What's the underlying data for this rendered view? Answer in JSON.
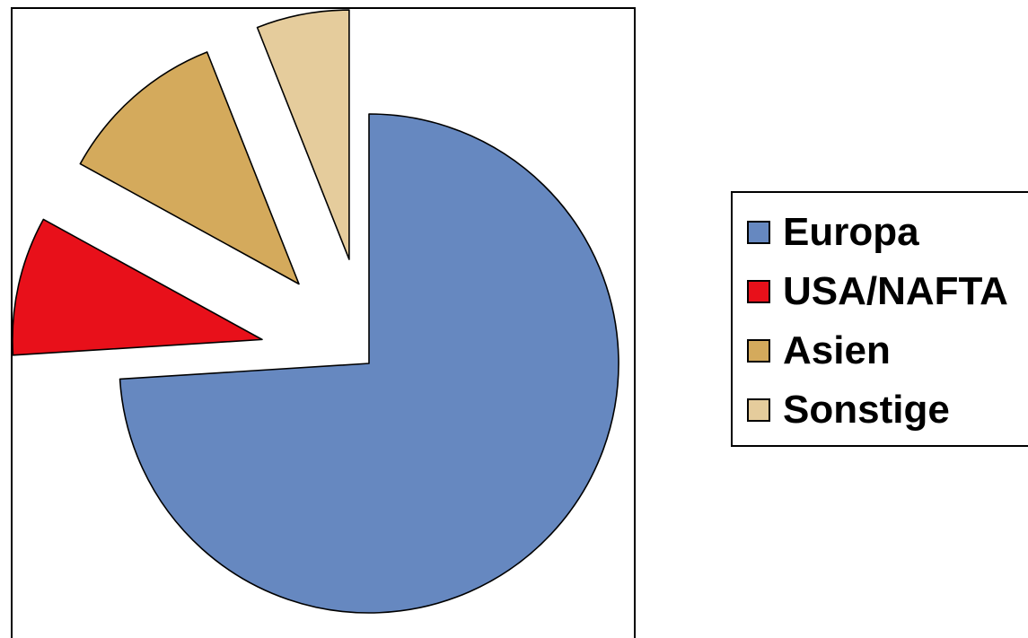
{
  "chart_data": {
    "type": "pie",
    "title": "",
    "exploded": true,
    "legend_position": "right",
    "slices": [
      {
        "label": "Europa",
        "value": 74,
        "color": "#6688C0"
      },
      {
        "label": "USA/NAFTA",
        "value": 9,
        "color": "#E8101A"
      },
      {
        "label": "Asien",
        "value": 11,
        "color": "#D4AA5C"
      },
      {
        "label": "Sonstige",
        "value": 6,
        "color": "#E5CC9C"
      }
    ]
  }
}
